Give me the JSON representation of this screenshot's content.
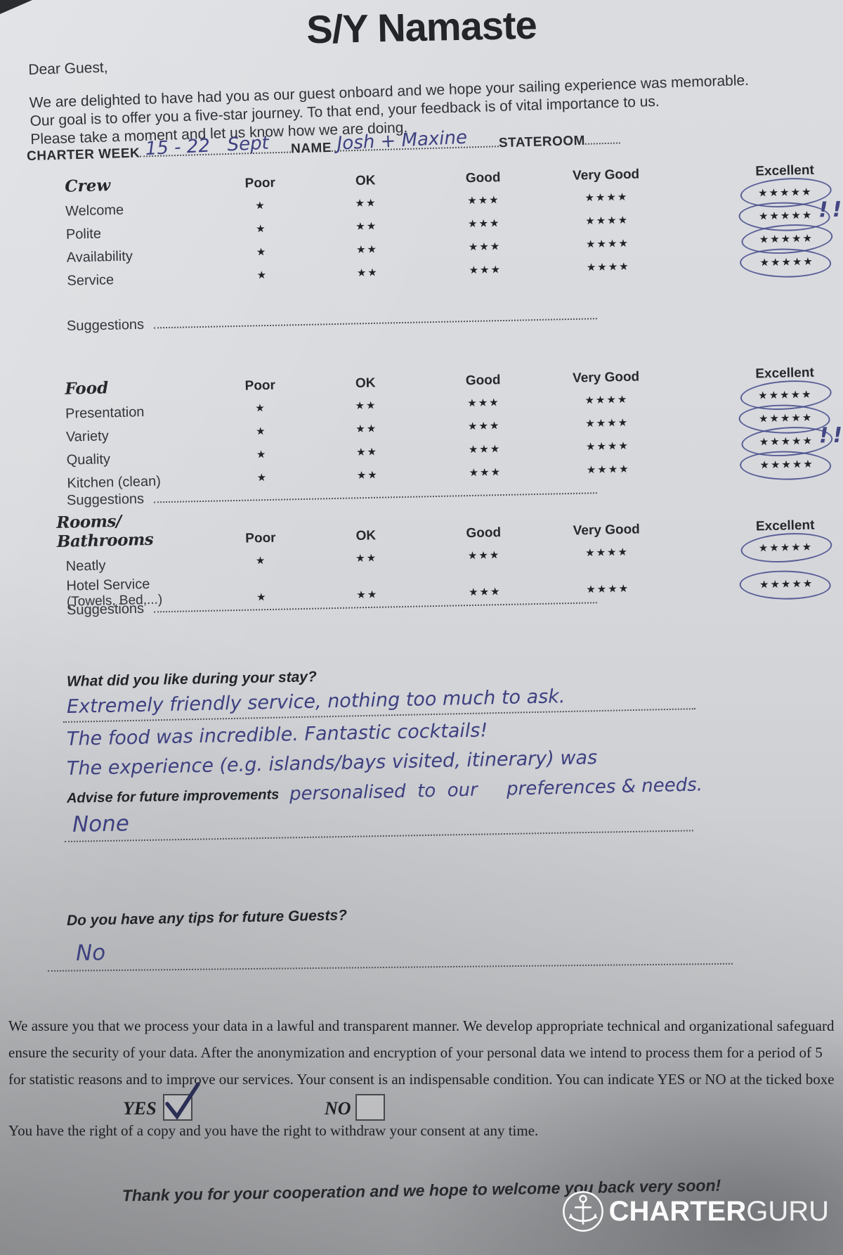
{
  "form": {
    "title": "S/Y Namaste",
    "greeting": "Dear Guest,",
    "intro_lines": [
      "We are delighted to have had you as our guest onboard and we hope your sailing experience was memorable.",
      "Our goal is to offer you a five-star journey. To that end, your feedback is of vital importance to us.",
      "Please take a moment and let us know how we are doing."
    ],
    "fields": {
      "charter_week_label": "CHARTER WEEK",
      "charter_week_value": "15 - 22   Sept",
      "name_label": "NAME",
      "name_value": "Josh + Maxine",
      "stateroom_label": "STATEROOM",
      "stateroom_value": ""
    },
    "rating_headers": [
      "Poor",
      "OK",
      "Good",
      "Very Good",
      "Excellent"
    ],
    "star_scale": [
      "★",
      "★★",
      "★★★",
      "★★★★",
      "★★★★★"
    ],
    "suggestions_label": "Suggestions",
    "sections": [
      {
        "title": "Crew",
        "rows": [
          {
            "label": "Welcome",
            "sublabel": "",
            "selected": "Excellent",
            "mark": ""
          },
          {
            "label": "Polite",
            "sublabel": "",
            "selected": "Excellent",
            "mark": "!!"
          },
          {
            "label": "Availability",
            "sublabel": "",
            "selected": "Excellent",
            "mark": ""
          },
          {
            "label": "Service",
            "sublabel": "",
            "selected": "Excellent",
            "mark": ""
          }
        ]
      },
      {
        "title": "Food",
        "rows": [
          {
            "label": "Presentation",
            "sublabel": "",
            "selected": "Excellent",
            "mark": ""
          },
          {
            "label": "Variety",
            "sublabel": "",
            "selected": "Excellent",
            "mark": ""
          },
          {
            "label": "Quality",
            "sublabel": "",
            "selected": "Excellent",
            "mark": "!!"
          },
          {
            "label": "Kitchen (clean)",
            "sublabel": "",
            "selected": "Excellent",
            "mark": ""
          }
        ]
      },
      {
        "title": "Rooms/ Bathrooms",
        "rows": [
          {
            "label": "Neatly",
            "sublabel": "",
            "selected": "Excellent",
            "mark": ""
          },
          {
            "label": "Hotel Service",
            "sublabel": "(Towels, Bed,...)",
            "selected": "Excellent",
            "mark": ""
          }
        ]
      }
    ],
    "questions": {
      "q1": "What did you like during your stay?",
      "q1_answer_line1": "Extremely friendly service, nothing too much to ask.",
      "q1_answer_line2": "The food was incredible. Fantastic cocktails!",
      "q1_answer_line3": "The experience (e.g. islands/bays visited, itinerary) was",
      "advise_label": "Advise for future improvements",
      "advise_answer": "personalised  to  our     preferences & needs.",
      "advise_line_answer": "None",
      "q2": "Do you have any tips for future Guests?",
      "q2_answer": "No"
    },
    "consent": {
      "lines": [
        "We assure you that we process your data in a lawful and transparent manner. We develop appropriate technical and organizational safeguard",
        "ensure the security of your data. After the anonymization and encryption of your personal data we intend to process them for a period of 5",
        "for statistic reasons and to improve our services. Your consent is an indispensable condition. You can indicate YES or NO at the ticked boxe"
      ],
      "yes_label": "YES",
      "no_label": "NO",
      "yes_checked": true,
      "no_checked": false,
      "rights_line": "You have the right of a copy and you have the right to withdraw your consent at any time."
    },
    "footer": {
      "thanks": "Thank you for your cooperation and we hope to welcome you back very soon!",
      "brand_bold": "CHARTER",
      "brand_light": "GURU"
    },
    "colors": {
      "handwriting": "#3e4080",
      "ink": "#2a2c31",
      "paper": "#d7d9dc",
      "logo": "#fbfbfc"
    }
  }
}
